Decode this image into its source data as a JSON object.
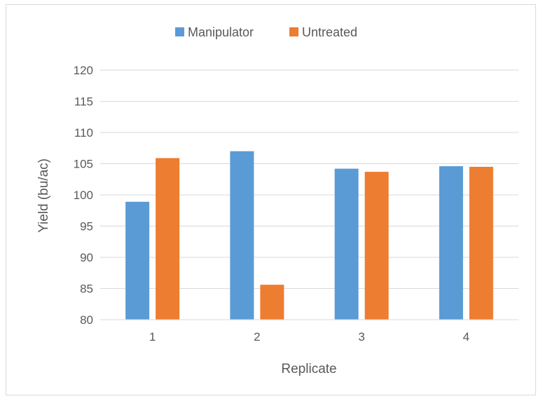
{
  "chart_data": {
    "type": "bar",
    "title": "",
    "xlabel": "Replicate",
    "ylabel": "Yield (bu/ac)",
    "categories": [
      "1",
      "2",
      "3",
      "4"
    ],
    "ylim": [
      80,
      120
    ],
    "yticks": [
      80,
      85,
      90,
      95,
      100,
      105,
      110,
      115,
      120
    ],
    "grid": true,
    "legend_position": "top",
    "series": [
      {
        "name": "Manipulator",
        "color": "#5b9bd5",
        "values": [
          98.9,
          107.0,
          104.2,
          104.6
        ]
      },
      {
        "name": "Untreated",
        "color": "#ed7d31",
        "values": [
          105.9,
          85.6,
          103.7,
          104.5
        ]
      }
    ]
  }
}
